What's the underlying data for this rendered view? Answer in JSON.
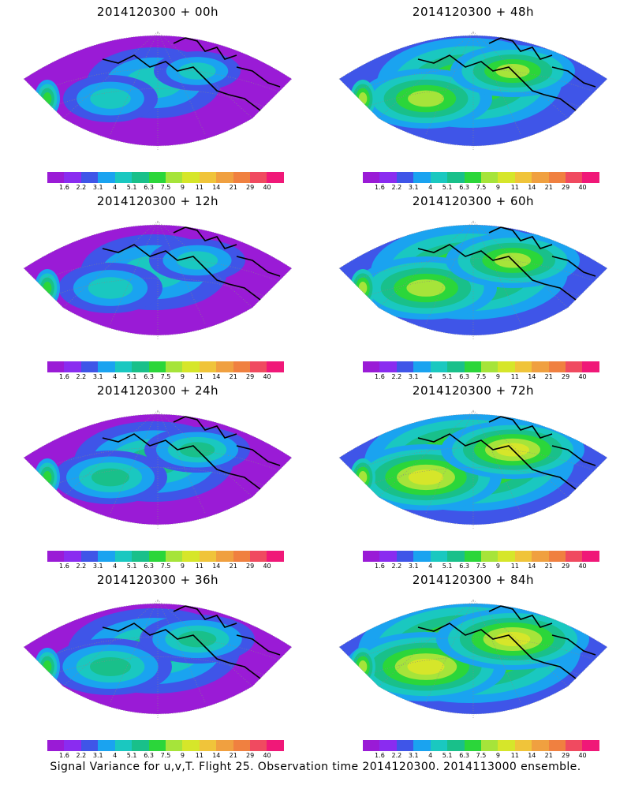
{
  "palette": [
    "#9a1bd6",
    "#8a2cf0",
    "#3f55e8",
    "#1aa3f0",
    "#1ac8c0",
    "#19c08a",
    "#2bd63a",
    "#a6e43a",
    "#d6e62a",
    "#f0c43a",
    "#f0a040",
    "#f08040",
    "#f04a60",
    "#f01878"
  ],
  "colorbar": {
    "ticks": [
      "1.6",
      "2.2",
      "3.1",
      "4",
      "5.1",
      "6.3",
      "7.5",
      "9",
      "11",
      "14",
      "21",
      "29",
      "40"
    ]
  },
  "panels": [
    {
      "title": "2014120300 + 00h",
      "level": 0
    },
    {
      "title": "2014120300 + 48h",
      "level": 4
    },
    {
      "title": "2014120300 + 12h",
      "level": 1
    },
    {
      "title": "2014120300 + 60h",
      "level": 5
    },
    {
      "title": "2014120300 + 24h",
      "level": 2
    },
    {
      "title": "2014120300 + 72h",
      "level": 6
    },
    {
      "title": "2014120300 + 36h",
      "level": 3
    },
    {
      "title": "2014120300 + 84h",
      "level": 7
    }
  ],
  "footer": "Signal Variance for u,v,T. Flight 25. Observation time 2014120300. 2014113000 ensemble."
}
